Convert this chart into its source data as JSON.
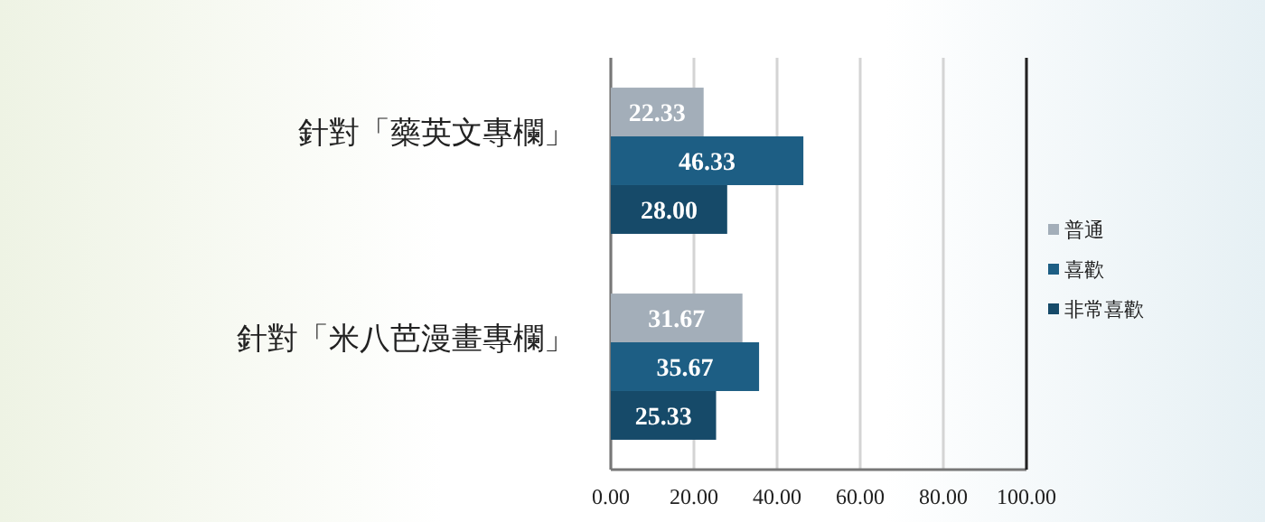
{
  "chart_data": {
    "type": "bar",
    "orientation": "horizontal",
    "categories": [
      "針對「藥英文專欄」",
      "針對「米八芭漫畫專欄」"
    ],
    "series": [
      {
        "name": "普通",
        "color": "#a3aeb9",
        "values": [
          22.33,
          31.67
        ],
        "value_labels": [
          "22.33",
          "31.67"
        ]
      },
      {
        "name": "喜歡",
        "color": "#1d5e84",
        "values": [
          46.33,
          35.67
        ],
        "value_labels": [
          "46.33",
          "35.67"
        ]
      },
      {
        "name": "非常喜歡",
        "color": "#164a69",
        "values": [
          28.0,
          25.33
        ],
        "value_labels": [
          "28.00",
          "25.33"
        ]
      }
    ],
    "xlim": [
      0,
      100
    ],
    "xticks": [
      {
        "value": 0,
        "label": "0.00"
      },
      {
        "value": 20,
        "label": "20.00"
      },
      {
        "value": 40,
        "label": "40.00"
      },
      {
        "value": 60,
        "label": "60.00"
      },
      {
        "value": 80,
        "label": "80.00"
      },
      {
        "value": 100,
        "label": "100.00"
      }
    ],
    "grid": "x",
    "legend": "right"
  }
}
